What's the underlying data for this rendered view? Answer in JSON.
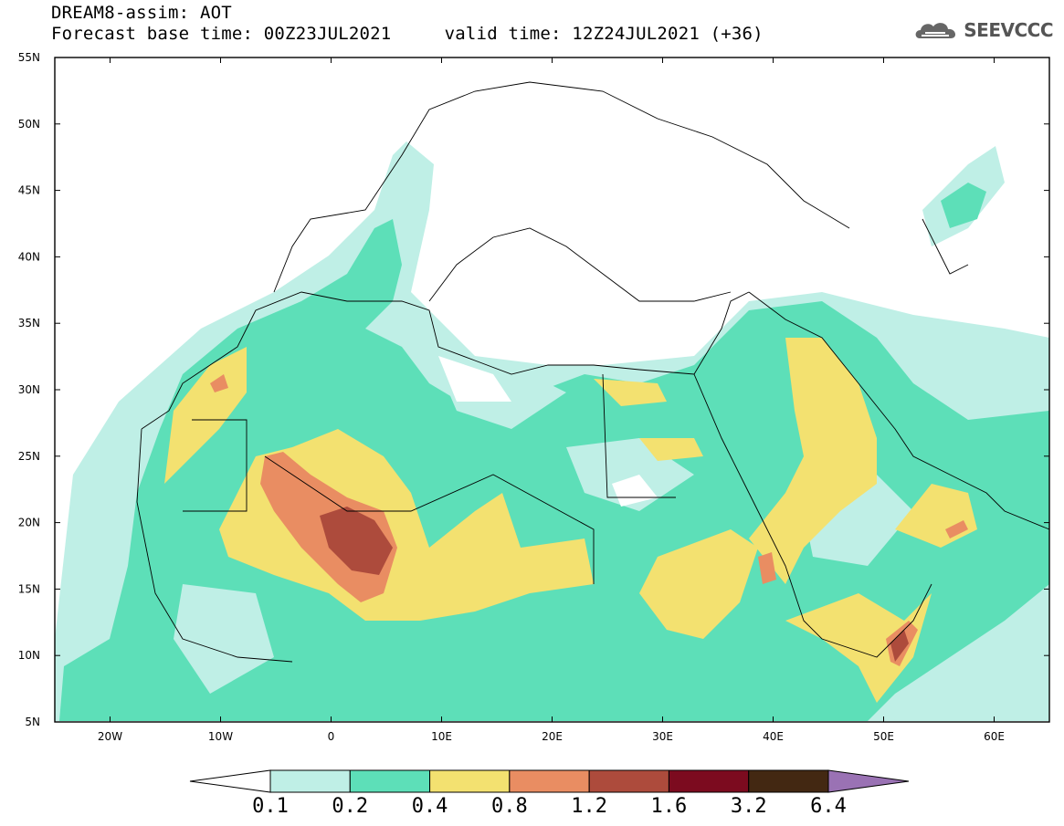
{
  "header": {
    "line1": "DREAM8-assim: AOT",
    "line2": "Forecast base time: 00Z23JUL2021     valid time: 12Z24JUL2021 (+36)"
  },
  "logo": {
    "text": "SEEVCCC",
    "icon": "cloud-icon"
  },
  "map": {
    "lat_labels": [
      "55N",
      "50N",
      "45N",
      "40N",
      "35N",
      "30N",
      "25N",
      "20N",
      "15N",
      "10N",
      "5N"
    ],
    "lon_labels": [
      "20W",
      "10W",
      "0",
      "10E",
      "20E",
      "30E",
      "40E",
      "50E",
      "60E"
    ],
    "lat_range": [
      5,
      55
    ],
    "lon_range": [
      -25,
      65
    ]
  },
  "colorbar": {
    "colors": [
      "#ffffff",
      "#bfefe6",
      "#5ddfb8",
      "#f3e170",
      "#e98d62",
      "#ad4b3c",
      "#7c0b1f",
      "#432812",
      "#9a72b4"
    ],
    "labels": [
      "0.1",
      "0.2",
      "0.4",
      "0.8",
      "1.2",
      "1.6",
      "3.2",
      "6.4"
    ]
  }
}
